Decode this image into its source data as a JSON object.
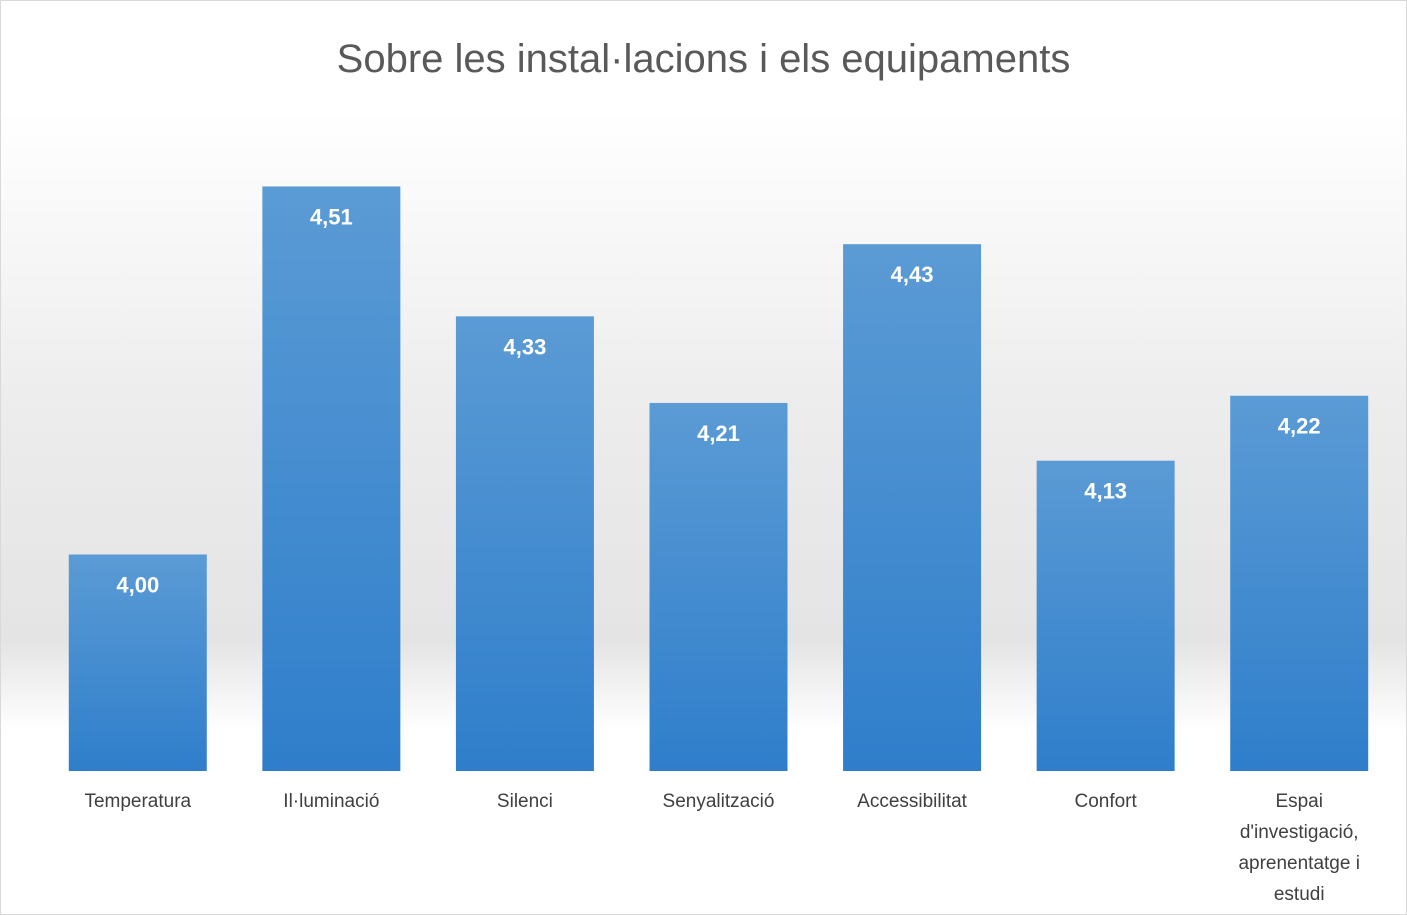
{
  "chart_data": {
    "type": "bar",
    "title": "Sobre les instal·lacions i els equipaments",
    "categories": [
      "Temperatura",
      "Il·luminació",
      "Silenci",
      "Senyalització",
      "Accessibilitat",
      "Confort",
      "Espai d'investigació, aprenentatge i estudi"
    ],
    "values": [
      4.0,
      4.51,
      4.33,
      4.21,
      4.43,
      4.13,
      4.22
    ],
    "value_labels": [
      "4,00",
      "4,51",
      "4,33",
      "4,21",
      "4,43",
      "4,13",
      "4,22"
    ],
    "color": "#5b9bd5",
    "ylim": [
      3.7,
      4.6
    ]
  }
}
